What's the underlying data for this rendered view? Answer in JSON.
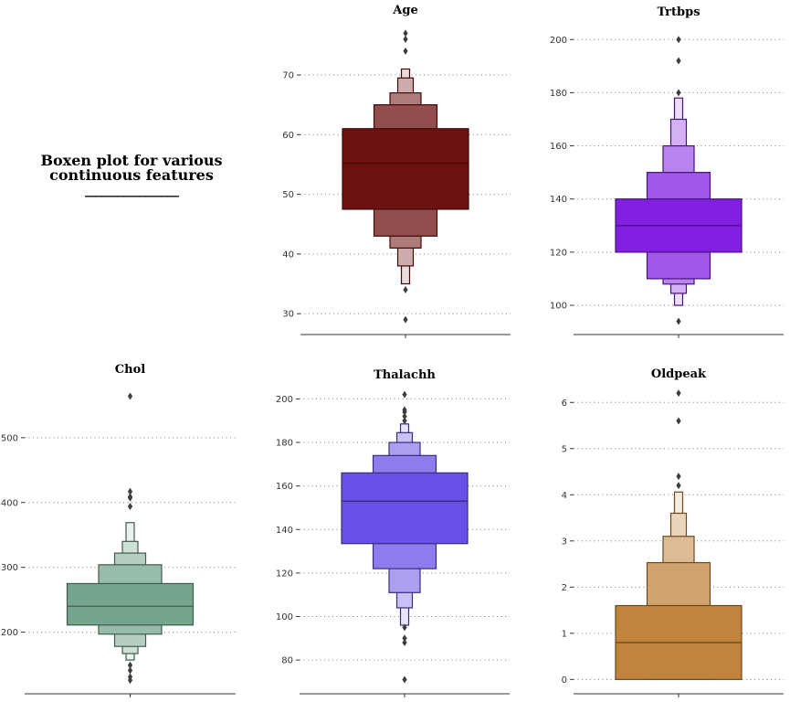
{
  "figure": {
    "title_line1": "Boxen plot for various",
    "title_line2": "continuous features",
    "title_underline": "_________________"
  },
  "chart_data": [
    {
      "type": "boxen",
      "title": "Age",
      "color": "#6e1111",
      "ylim": [
        26.5,
        79.5
      ],
      "yticks": [
        30,
        40,
        50,
        60,
        70
      ],
      "grid": true,
      "median": 55.2,
      "levels": [
        {
          "lo": 47.5,
          "hi": 61,
          "width": 1.0
        },
        {
          "lo": 43,
          "hi": 65,
          "width": 0.5
        },
        {
          "lo": 41,
          "hi": 67,
          "width": 0.25
        },
        {
          "lo": 38,
          "hi": 69.5,
          "width": 0.125
        },
        {
          "lo": 35,
          "hi": 71,
          "width": 0.0625
        }
      ],
      "outliers": [
        29,
        34,
        74,
        76,
        77
      ]
    },
    {
      "type": "boxen",
      "title": "Trtbps",
      "color": "#8120e0",
      "ylim": [
        89,
        208
      ],
      "yticks": [
        100,
        120,
        140,
        160,
        180,
        200
      ],
      "grid": true,
      "median": 130,
      "levels": [
        {
          "lo": 120,
          "hi": 140,
          "width": 1.0
        },
        {
          "lo": 110,
          "hi": 150,
          "width": 0.5
        },
        {
          "lo": 108,
          "hi": 160,
          "width": 0.25
        },
        {
          "lo": 104.5,
          "hi": 170,
          "width": 0.125
        },
        {
          "lo": 100,
          "hi": 178,
          "width": 0.0625
        }
      ],
      "outliers": [
        94,
        180,
        192,
        200
      ]
    },
    {
      "type": "boxen",
      "title": "Chol",
      "color": "#76a58e",
      "ylim": [
        105,
        590
      ],
      "yticks": [
        200,
        300,
        400,
        500
      ],
      "grid": true,
      "median": 240,
      "levels": [
        {
          "lo": 211,
          "hi": 275,
          "width": 1.0
        },
        {
          "lo": 197,
          "hi": 304,
          "width": 0.5
        },
        {
          "lo": 178,
          "hi": 322,
          "width": 0.25
        },
        {
          "lo": 167,
          "hi": 340,
          "width": 0.125
        },
        {
          "lo": 157,
          "hi": 369,
          "width": 0.0625
        }
      ],
      "outliers": [
        126,
        131,
        141,
        149,
        394,
        407,
        409,
        417,
        564
      ]
    },
    {
      "type": "boxen",
      "title": "Thalachh",
      "color": "#6650e6",
      "ylim": [
        64.5,
        209
      ],
      "yticks": [
        80,
        100,
        120,
        140,
        160,
        180,
        200
      ],
      "grid": true,
      "median": 153,
      "levels": [
        {
          "lo": 133.5,
          "hi": 166,
          "width": 1.0
        },
        {
          "lo": 122,
          "hi": 174,
          "width": 0.5
        },
        {
          "lo": 111,
          "hi": 180,
          "width": 0.25
        },
        {
          "lo": 104,
          "hi": 184.5,
          "width": 0.125
        },
        {
          "lo": 96,
          "hi": 188.5,
          "width": 0.0625
        }
      ],
      "outliers": [
        71,
        88,
        90,
        95,
        190,
        192,
        194,
        195,
        202
      ]
    },
    {
      "type": "boxen",
      "title": "Oldpeak",
      "color": "#c2843d",
      "ylim": [
        -0.31,
        6.5
      ],
      "yticks": [
        0,
        1,
        2,
        3,
        4,
        5,
        6
      ],
      "grid": true,
      "median": 0.8,
      "levels": [
        {
          "lo": 0,
          "hi": 1.6,
          "width": 1.0
        },
        {
          "lo": 0,
          "hi": 2.53,
          "width": 0.5
        },
        {
          "lo": 0,
          "hi": 3.1,
          "width": 0.25
        },
        {
          "lo": 0,
          "hi": 3.6,
          "width": 0.125
        },
        {
          "lo": 0,
          "hi": 4.06,
          "width": 0.0625
        }
      ],
      "outliers": [
        4.2,
        4.4,
        5.6,
        6.2
      ]
    }
  ]
}
